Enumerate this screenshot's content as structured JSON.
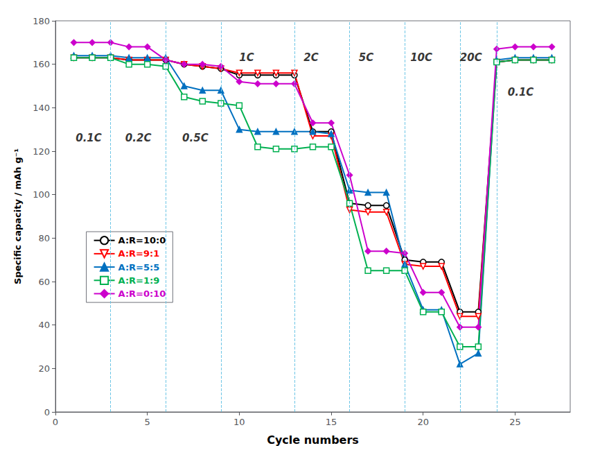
{
  "chart_data": {
    "type": "line",
    "x_label": "Cycle numbers",
    "y_label": "Specific capacity / mAh g⁻¹",
    "x": [
      1,
      2,
      3,
      4,
      5,
      6,
      7,
      8,
      9,
      10,
      11,
      12,
      13,
      14,
      15,
      16,
      17,
      18,
      19,
      20,
      21,
      22,
      23,
      24,
      25,
      26,
      27
    ],
    "series": [
      {
        "name": "A:R=10:0",
        "color": "#000000",
        "marker": "circle-open",
        "values": [
          163,
          163,
          163,
          162,
          162,
          162,
          160,
          159,
          158,
          155,
          155,
          155,
          155,
          129,
          129,
          96,
          95,
          95,
          70,
          69,
          69,
          46,
          46,
          161,
          162,
          162,
          162
        ]
      },
      {
        "name": "A:R=9:1",
        "color": "#ff0000",
        "marker": "triangle-down-open",
        "values": [
          163,
          163,
          163,
          162,
          162,
          162,
          160,
          159,
          158,
          156,
          156,
          156,
          156,
          127,
          127,
          93,
          92,
          92,
          68,
          67,
          67,
          44,
          44,
          161,
          162,
          162,
          162
        ]
      },
      {
        "name": "A:R=5:5",
        "color": "#0070c0",
        "marker": "triangle",
        "values": [
          164,
          164,
          164,
          163,
          163,
          163,
          150,
          148,
          148,
          130,
          129,
          129,
          129,
          129,
          128,
          102,
          101,
          101,
          68,
          47,
          47,
          22,
          27,
          162,
          163,
          163,
          163
        ]
      },
      {
        "name": "A:R=1:9",
        "color": "#00b050",
        "marker": "square-open",
        "values": [
          163,
          163,
          163,
          160,
          160,
          159,
          145,
          143,
          142,
          141,
          122,
          121,
          121,
          122,
          122,
          96,
          65,
          65,
          65,
          46,
          46,
          30,
          30,
          161,
          162,
          162,
          162
        ]
      },
      {
        "name": "A:R=0:10",
        "color": "#cc00cc",
        "marker": "diamond",
        "values": [
          170,
          170,
          170,
          168,
          168,
          162,
          160,
          160,
          159,
          152,
          151,
          151,
          151,
          133,
          133,
          109,
          74,
          74,
          73,
          55,
          55,
          39,
          39,
          167,
          168,
          168,
          168
        ]
      }
    ],
    "vlines": {
      "x": [
        3,
        6,
        9,
        13,
        16,
        19,
        22,
        24
      ],
      "color": "#6ec6e6",
      "line_style": "dashed"
    },
    "annotations": [
      {
        "text": "0.1C",
        "x": 1.1,
        "y": 126
      },
      {
        "text": "0.2C",
        "x": 3.8,
        "y": 126
      },
      {
        "text": "0.5C",
        "x": 6.9,
        "y": 126
      },
      {
        "text": "1C",
        "x": 10.0,
        "y": 163
      },
      {
        "text": "2C",
        "x": 13.5,
        "y": 163
      },
      {
        "text": "5C",
        "x": 16.5,
        "y": 163
      },
      {
        "text": "10C",
        "x": 19.3,
        "y": 163
      },
      {
        "text": "20C",
        "x": 22.0,
        "y": 163
      },
      {
        "text": "0.1C",
        "x": 24.6,
        "y": 147
      }
    ],
    "xlim": [
      0,
      28
    ],
    "ylim": [
      0,
      180
    ],
    "xticks": [
      0,
      5,
      10,
      15,
      20,
      25
    ],
    "yticks": [
      0,
      20,
      40,
      60,
      80,
      100,
      120,
      140,
      160,
      180
    ],
    "grid": false,
    "legend": "lower left"
  }
}
